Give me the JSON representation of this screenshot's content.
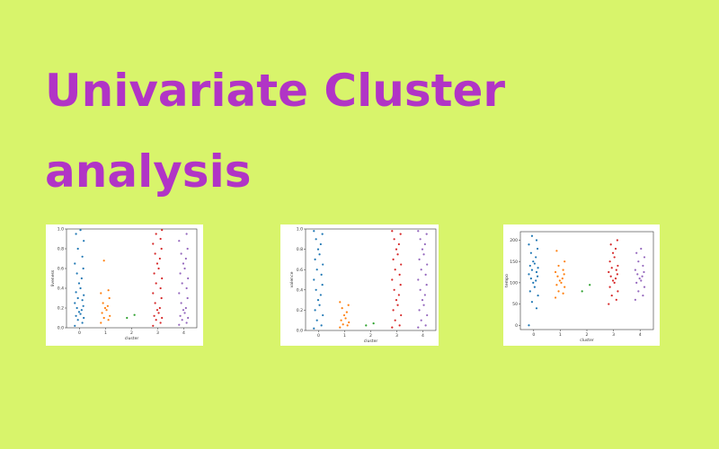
{
  "slide": {
    "title_line1": "Univariate Cluster",
    "title_line2": "analysis"
  },
  "colors": [
    "#1f77b4",
    "#ff7f0e",
    "#2ca02c",
    "#d62728",
    "#9467bd"
  ],
  "chart_data": [
    {
      "type": "scatter",
      "title": "",
      "xlabel": "cluster",
      "ylabel": "liveness",
      "categories": [
        "0",
        "1",
        "2",
        "3",
        "4"
      ],
      "ylim": [
        0,
        1.0
      ],
      "yticks": [
        "0.0",
        "0.2",
        "0.4",
        "0.6",
        "0.8",
        "1.0"
      ],
      "grid": false,
      "series": [
        {
          "values": [
            0.02,
            0.05,
            0.08,
            0.1,
            0.12,
            0.14,
            0.16,
            0.18,
            0.2,
            0.22,
            0.25,
            0.28,
            0.3,
            0.33,
            0.36,
            0.4,
            0.45,
            0.5,
            0.55,
            0.6,
            0.65,
            0.72,
            0.8,
            0.88,
            0.95,
            0.99
          ]
        },
        {
          "values": [
            0.05,
            0.08,
            0.1,
            0.12,
            0.15,
            0.18,
            0.2,
            0.22,
            0.25,
            0.3,
            0.35,
            0.38,
            0.68
          ]
        },
        {
          "values": [
            0.1,
            0.13
          ]
        },
        {
          "values": [
            0.02,
            0.05,
            0.08,
            0.1,
            0.12,
            0.15,
            0.18,
            0.2,
            0.25,
            0.3,
            0.35,
            0.4,
            0.45,
            0.5,
            0.55,
            0.6,
            0.65,
            0.7,
            0.75,
            0.8,
            0.85,
            0.9,
            0.95,
            0.99
          ]
        },
        {
          "values": [
            0.03,
            0.05,
            0.08,
            0.1,
            0.12,
            0.15,
            0.18,
            0.2,
            0.25,
            0.3,
            0.35,
            0.4,
            0.45,
            0.5,
            0.55,
            0.6,
            0.65,
            0.7,
            0.75,
            0.8,
            0.88,
            0.95
          ]
        }
      ]
    },
    {
      "type": "scatter",
      "title": "",
      "xlabel": "cluster",
      "ylabel": "valence",
      "categories": [
        "0",
        "1",
        "2",
        "3",
        "4"
      ],
      "ylim": [
        0,
        1.0
      ],
      "yticks": [
        "0.0",
        "0.2",
        "0.4",
        "0.6",
        "0.8",
        "1.0"
      ],
      "grid": false,
      "series": [
        {
          "values": [
            0.02,
            0.05,
            0.1,
            0.15,
            0.2,
            0.25,
            0.3,
            0.35,
            0.4,
            0.45,
            0.5,
            0.55,
            0.6,
            0.65,
            0.7,
            0.75,
            0.8,
            0.85,
            0.9,
            0.95,
            0.98
          ]
        },
        {
          "values": [
            0.03,
            0.05,
            0.06,
            0.08,
            0.1,
            0.12,
            0.15,
            0.18,
            0.22,
            0.25,
            0.28
          ]
        },
        {
          "values": [
            0.05,
            0.07
          ]
        },
        {
          "values": [
            0.03,
            0.05,
            0.1,
            0.15,
            0.2,
            0.25,
            0.3,
            0.35,
            0.4,
            0.45,
            0.5,
            0.55,
            0.6,
            0.65,
            0.7,
            0.75,
            0.8,
            0.85,
            0.9,
            0.95,
            0.98
          ]
        },
        {
          "values": [
            0.03,
            0.05,
            0.1,
            0.15,
            0.2,
            0.25,
            0.3,
            0.35,
            0.4,
            0.45,
            0.5,
            0.55,
            0.6,
            0.65,
            0.7,
            0.75,
            0.8,
            0.85,
            0.9,
            0.95,
            0.98
          ]
        }
      ]
    },
    {
      "type": "scatter",
      "title": "",
      "xlabel": "cluster",
      "ylabel": "tempo",
      "categories": [
        "0",
        "1",
        "2",
        "3",
        "4"
      ],
      "ylim": [
        -10,
        220
      ],
      "yticks": [
        "0",
        "50",
        "100",
        "150",
        "200"
      ],
      "ytick_values": [
        0,
        50,
        100,
        150,
        200
      ],
      "grid": false,
      "series": [
        {
          "values": [
            0,
            40,
            55,
            70,
            80,
            90,
            100,
            105,
            110,
            115,
            120,
            125,
            130,
            135,
            140,
            145,
            150,
            160,
            170,
            180,
            190,
            200,
            210
          ]
        },
        {
          "values": [
            65,
            75,
            80,
            90,
            95,
            100,
            105,
            110,
            115,
            120,
            125,
            130,
            140,
            150,
            175
          ]
        },
        {
          "values": [
            80,
            95
          ]
        },
        {
          "values": [
            50,
            60,
            70,
            80,
            90,
            100,
            105,
            110,
            115,
            120,
            125,
            130,
            135,
            140,
            150,
            160,
            170,
            180,
            190,
            200
          ]
        },
        {
          "values": [
            60,
            70,
            80,
            90,
            100,
            105,
            110,
            115,
            120,
            125,
            130,
            140,
            150,
            160,
            170,
            180
          ]
        }
      ]
    }
  ]
}
